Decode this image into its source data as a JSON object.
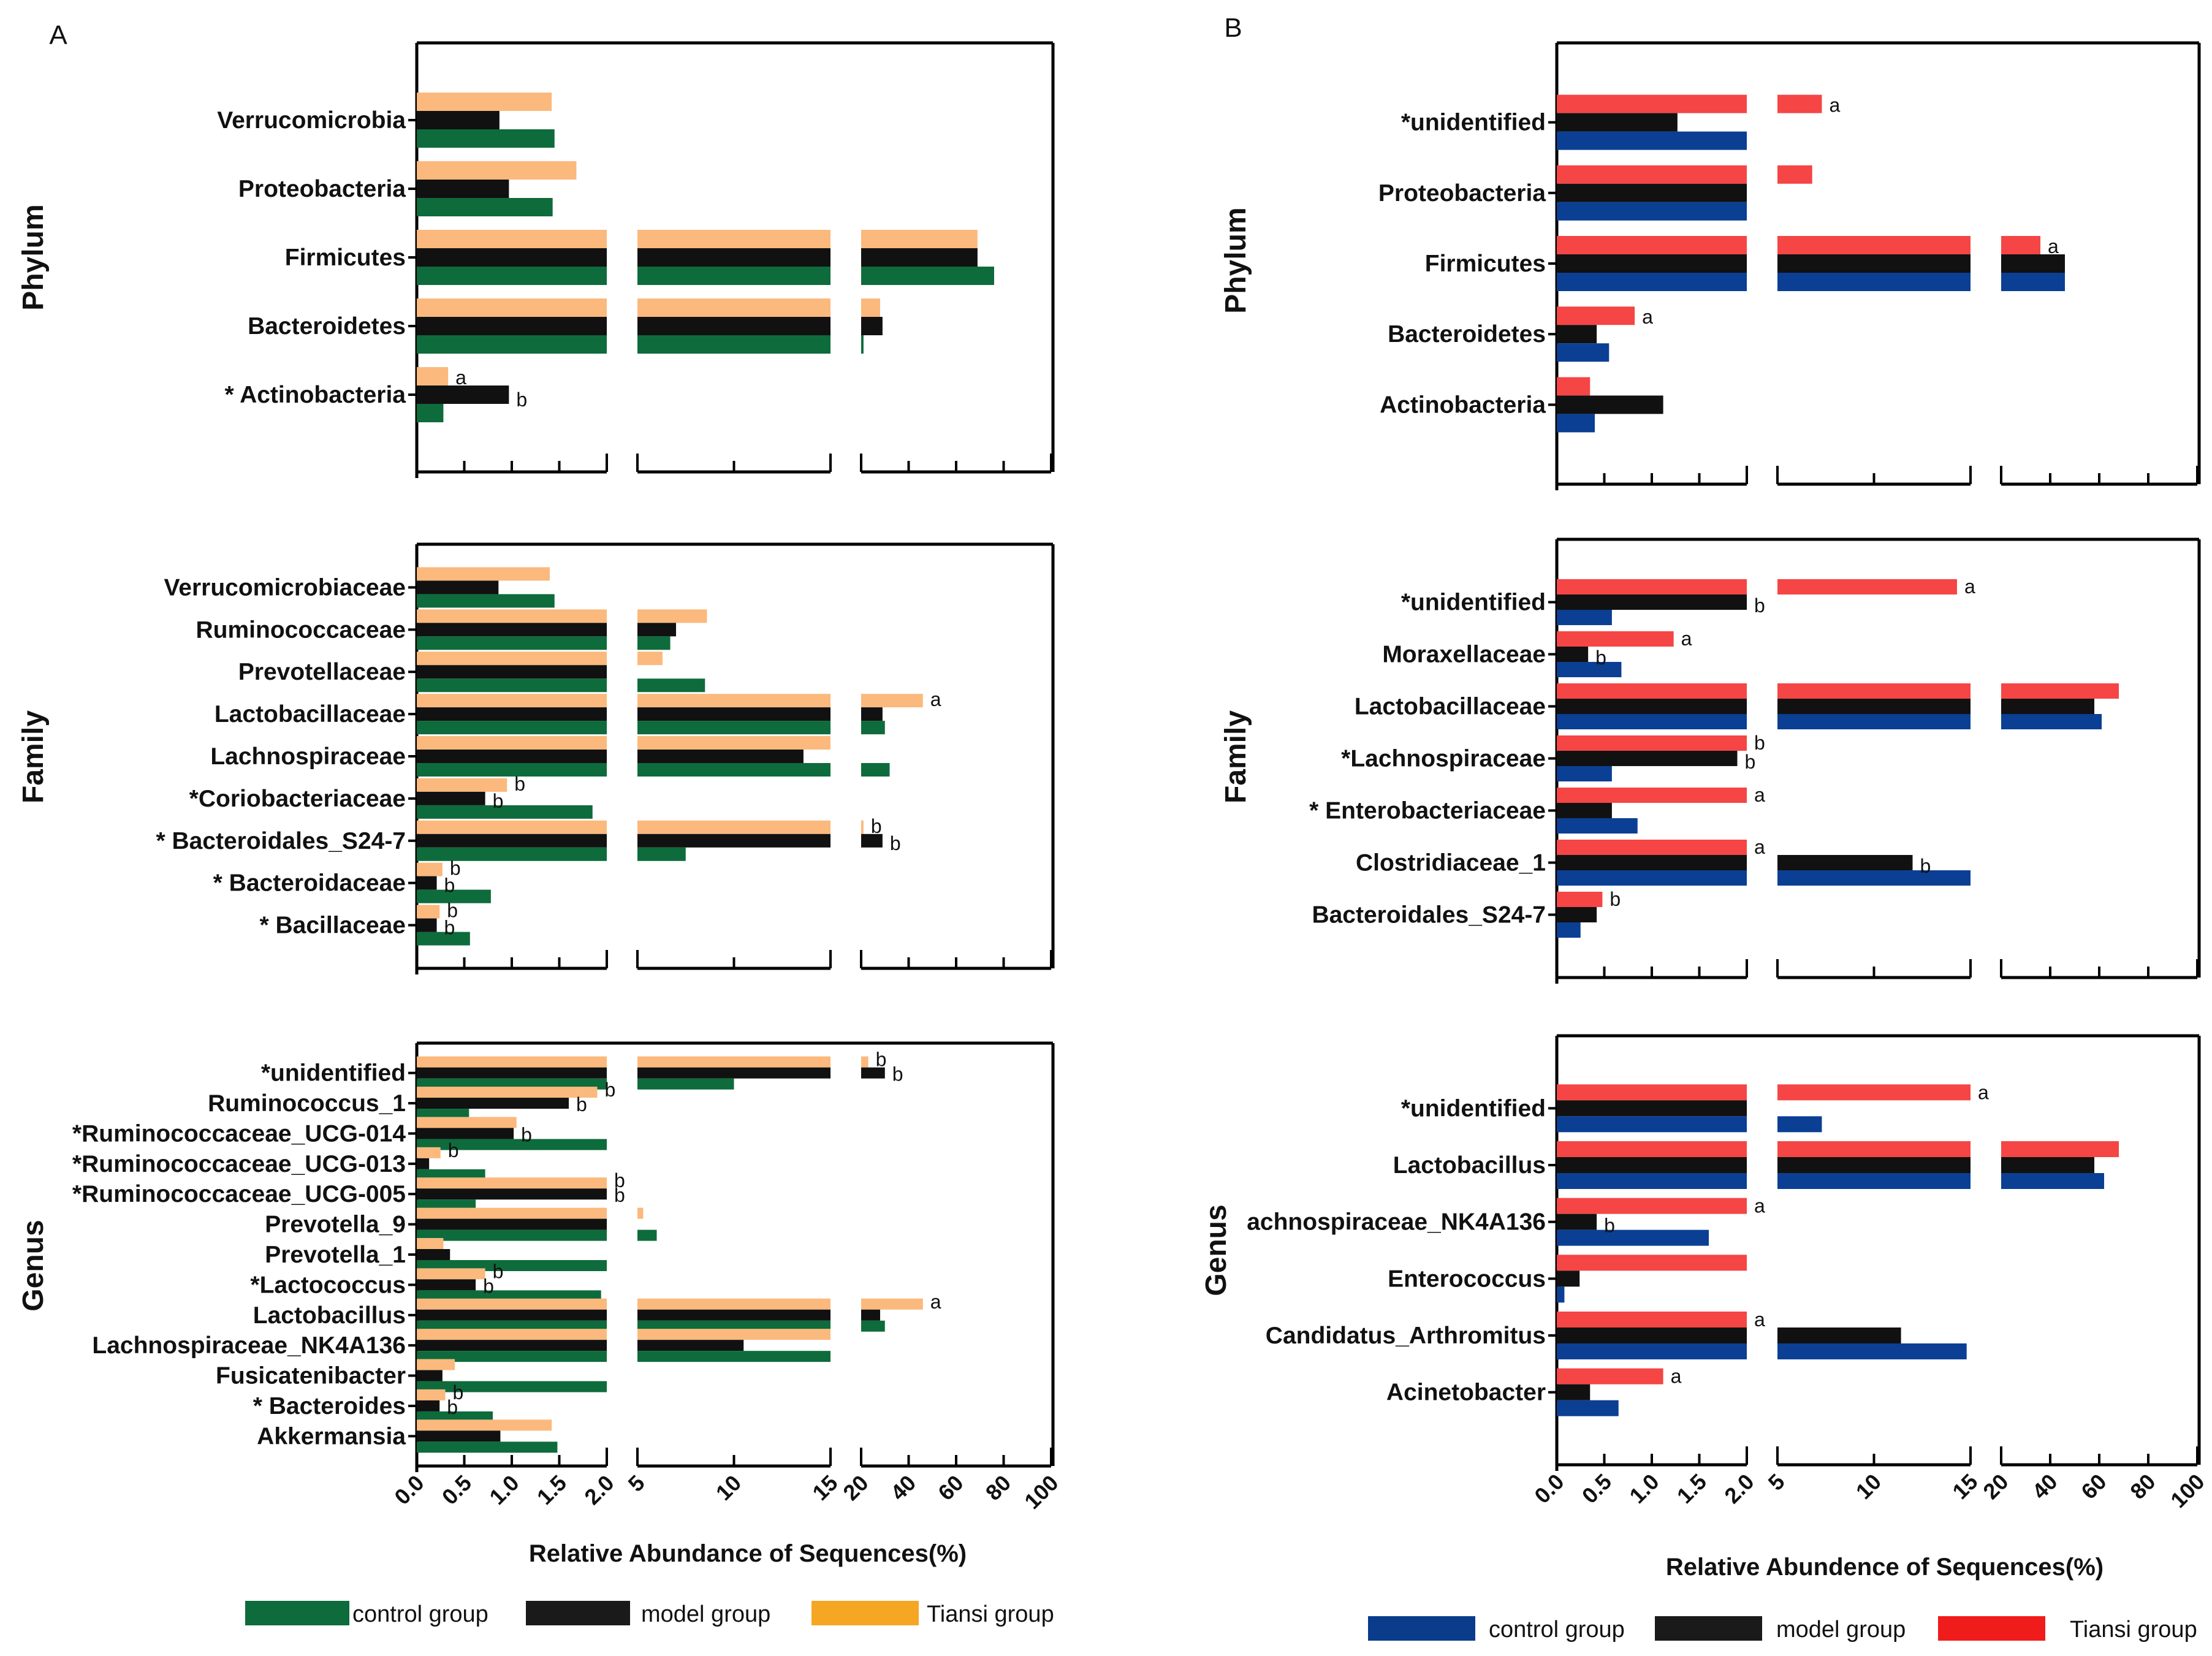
{
  "chart_data": [
    {
      "panel": "A",
      "type": "bar",
      "xlabel": "Relative Abundance of Sequences(%)",
      "axis_segments": [
        {
          "min": 0,
          "max": 2,
          "ticks": [
            "0.0",
            "0.5",
            "1.0",
            "1.5",
            "2.0"
          ]
        },
        {
          "min": 5,
          "max": 15,
          "ticks": [
            "5",
            "10",
            "15"
          ]
        },
        {
          "min": 20,
          "max": 100,
          "ticks": [
            "20",
            "40",
            "60",
            "80",
            "100"
          ]
        }
      ],
      "legend": [
        {
          "name": "control group",
          "color": "#0e6b3c"
        },
        {
          "name": "model  group",
          "color": "#1a1a1a"
        },
        {
          "name": "Tiansi group",
          "color": "#f5a623"
        }
      ],
      "series_colors": {
        "control": "#0e6b3c",
        "model": "#111111",
        "tiansi": "#fbb97d"
      },
      "subplots": [
        {
          "level": "Phylum",
          "categories": [
            {
              "name": "Verrucomicrobia",
              "control": 1.45,
              "model": 0.87,
              "tiansi": 1.42,
              "sig_model": "",
              "sig_tiansi": ""
            },
            {
              "name": "Proteobacteria",
              "control": 1.43,
              "model": 0.97,
              "tiansi": 1.68,
              "sig_model": "",
              "sig_tiansi": ""
            },
            {
              "name": "Firmicutes",
              "control": 76,
              "model": 69,
              "tiansi": 69,
              "sig_model": "",
              "sig_tiansi": ""
            },
            {
              "name": "Bacteroidetes",
              "control": 21,
              "model": 29,
              "tiansi": 28,
              "sig_model": "",
              "sig_tiansi": ""
            },
            {
              "name": "* Actinobacteria",
              "control": 0.28,
              "model": 0.97,
              "tiansi": 0.33,
              "sig_model": "b",
              "sig_tiansi": "a"
            }
          ]
        },
        {
          "level": "Family",
          "categories": [
            {
              "name": "Verrucomicrobiaceae",
              "control": 1.45,
              "model": 0.86,
              "tiansi": 1.4,
              "sig_model": "",
              "sig_tiansi": ""
            },
            {
              "name": "Ruminococcaceae",
              "control": 6.7,
              "model": 7.0,
              "tiansi": 8.6,
              "sig_model": "",
              "sig_tiansi": ""
            },
            {
              "name": "Prevotellaceae",
              "control": 8.5,
              "model": 2.0,
              "tiansi": 6.3,
              "sig_model": "",
              "sig_tiansi": ""
            },
            {
              "name": "Lactobacillaceae",
              "control": 30,
              "model": 29,
              "tiansi": 46,
              "sig_model": "",
              "sig_tiansi": "a"
            },
            {
              "name": "Lachnospiraceae",
              "control": 32,
              "model": 13.6,
              "tiansi": 15,
              "sig_model": "",
              "sig_tiansi": ""
            },
            {
              "name": "*Coriobacteriaceae",
              "control": 1.85,
              "model": 0.72,
              "tiansi": 0.95,
              "sig_model": "b",
              "sig_tiansi": "b"
            },
            {
              "name": "* Bacteroidales_S24-7",
              "control": 7.5,
              "model": 29,
              "tiansi": 21,
              "sig_model": "b",
              "sig_tiansi": "b"
            },
            {
              "name": "* Bacteroidaceae",
              "control": 0.78,
              "model": 0.21,
              "tiansi": 0.27,
              "sig_model": "b",
              "sig_tiansi": "b"
            },
            {
              "name": "* Bacillaceae",
              "control": 0.56,
              "model": 0.21,
              "tiansi": 0.24,
              "sig_model": "b",
              "sig_tiansi": "b"
            }
          ]
        },
        {
          "level": "Genus",
          "categories": [
            {
              "name": "*unidentified",
              "control": 10,
              "model": 30,
              "tiansi": 23,
              "sig_model": "b",
              "sig_tiansi": "b"
            },
            {
              "name": "Ruminococcus_1",
              "control": 0.55,
              "model": 1.6,
              "tiansi": 1.9,
              "sig_model": "b",
              "sig_tiansi": "b"
            },
            {
              "name": "*Ruminococcaceae_UCG-014",
              "control": 2.0,
              "model": 1.02,
              "tiansi": 1.05,
              "sig_model": "b",
              "sig_tiansi": ""
            },
            {
              "name": "*Ruminococcaceae_UCG-013",
              "control": 0.72,
              "model": 0.13,
              "tiansi": 0.25,
              "sig_model": "",
              "sig_tiansi": "b"
            },
            {
              "name": "*Ruminococcaceae_UCG-005",
              "control": 0.62,
              "model": 2.0,
              "tiansi": 2.0,
              "sig_model": "b",
              "sig_tiansi": "b"
            },
            {
              "name": "Prevotella_9",
              "control": 6.0,
              "model": 2.0,
              "tiansi": 5.3,
              "sig_model": "",
              "sig_tiansi": ""
            },
            {
              "name": "Prevotella_1",
              "control": 2.0,
              "model": 0.35,
              "tiansi": 0.28,
              "sig_model": "",
              "sig_tiansi": ""
            },
            {
              "name": "*Lactococcus",
              "control": 1.94,
              "model": 0.62,
              "tiansi": 0.72,
              "sig_model": "b",
              "sig_tiansi": "b"
            },
            {
              "name": "Lactobacillus",
              "control": 30,
              "model": 28,
              "tiansi": 46,
              "sig_model": "",
              "sig_tiansi": "a"
            },
            {
              "name": "Lachnospiraceae_NK4A136",
              "control": 15,
              "model": 10.5,
              "tiansi": 15,
              "sig_model": "",
              "sig_tiansi": ""
            },
            {
              "name": "Fusicatenibacter",
              "control": 2.0,
              "model": 0.27,
              "tiansi": 0.4,
              "sig_model": "",
              "sig_tiansi": ""
            },
            {
              "name": "* Bacteroides",
              "control": 0.8,
              "model": 0.24,
              "tiansi": 0.3,
              "sig_model": "b",
              "sig_tiansi": "b"
            },
            {
              "name": "Akkermansia",
              "control": 1.48,
              "model": 0.88,
              "tiansi": 1.42,
              "sig_model": "",
              "sig_tiansi": ""
            }
          ]
        }
      ]
    },
    {
      "panel": "B",
      "type": "bar",
      "xlabel": "Relative Abundence of Sequences(%)",
      "axis_segments": [
        {
          "min": 0,
          "max": 2,
          "ticks": [
            "0.0",
            "0.5",
            "1.0",
            "1.5",
            "2.0"
          ]
        },
        {
          "min": 5,
          "max": 15,
          "ticks": [
            "5",
            "10",
            "15"
          ]
        },
        {
          "min": 20,
          "max": 100,
          "ticks": [
            "20",
            "40",
            "60",
            "80",
            "100"
          ]
        }
      ],
      "legend": [
        {
          "name": "control group",
          "color": "#0b3c8c"
        },
        {
          "name": "model group",
          "color": "#1a1a1a"
        },
        {
          "name": "Tiansi group",
          "color": "#f01c1c"
        }
      ],
      "series_colors": {
        "control": "#0b3f94",
        "model": "#111111",
        "tiansi": "#f54545"
      },
      "subplots": [
        {
          "level": "Phylum",
          "categories": [
            {
              "name": "*unidentified",
              "control": 2.0,
              "model": 1.27,
              "tiansi": 7.3,
              "sig_model": "",
              "sig_tiansi": "a"
            },
            {
              "name": "Proteobacteria",
              "control": 2.0,
              "model": 2.0,
              "tiansi": 6.8,
              "sig_model": "",
              "sig_tiansi": ""
            },
            {
              "name": "Firmicutes",
              "control": 46,
              "model": 46,
              "tiansi": 36,
              "sig_model": "",
              "sig_tiansi": "a"
            },
            {
              "name": "Bacteroidetes",
              "control": 0.55,
              "model": 0.42,
              "tiansi": 0.82,
              "sig_model": "",
              "sig_tiansi": "a"
            },
            {
              "name": "Actinobacteria",
              "control": 0.4,
              "model": 1.12,
              "tiansi": 0.35,
              "sig_model": "",
              "sig_tiansi": ""
            }
          ]
        },
        {
          "level": "Family",
          "categories": [
            {
              "name": "*unidentified",
              "control": 0.58,
              "model": 2.0,
              "tiansi": 14.3,
              "sig_model": "b",
              "sig_tiansi": "a"
            },
            {
              "name": "Moraxellaceae",
              "control": 0.68,
              "model": 0.33,
              "tiansi": 1.23,
              "sig_model": "b",
              "sig_tiansi": "a"
            },
            {
              "name": "Lactobacillaceae",
              "control": 61,
              "model": 58,
              "tiansi": 68,
              "sig_model": "",
              "sig_tiansi": ""
            },
            {
              "name": "*Lachnospiraceae",
              "control": 0.58,
              "model": 1.9,
              "tiansi": 2.0,
              "sig_model": "b",
              "sig_tiansi": "b"
            },
            {
              "name": "* Enterobacteriaceae",
              "control": 0.85,
              "model": 0.58,
              "tiansi": 2.0,
              "sig_model": "",
              "sig_tiansi": "a"
            },
            {
              "name": "Clostridiaceae_1",
              "control": 15,
              "model": 12,
              "tiansi": 2.0,
              "sig_model": "b",
              "sig_tiansi": "a"
            },
            {
              "name": "Bacteroidales_S24-7",
              "control": 0.25,
              "model": 0.42,
              "tiansi": 0.48,
              "sig_model": "",
              "sig_tiansi": "b"
            }
          ]
        },
        {
          "level": "Genus",
          "categories": [
            {
              "name": "*unidentified",
              "control": 7.3,
              "model": 2.0,
              "tiansi": 15,
              "sig_model": "",
              "sig_tiansi": "a"
            },
            {
              "name": "Lactobacillus",
              "control": 62,
              "model": 58,
              "tiansi": 68,
              "sig_model": "",
              "sig_tiansi": ""
            },
            {
              "name": "achnospiraceae_NK4A136",
              "control": 1.6,
              "model": 0.42,
              "tiansi": 2.0,
              "sig_model": "b",
              "sig_tiansi": "a"
            },
            {
              "name": "Enterococcus",
              "control": 0.08,
              "model": 0.24,
              "tiansi": 2.0,
              "sig_model": "",
              "sig_tiansi": ""
            },
            {
              "name": "Candidatus_Arthromitus",
              "control": 14.8,
              "model": 11.4,
              "tiansi": 2.0,
              "sig_model": "",
              "sig_tiansi": "a"
            },
            {
              "name": "Acinetobacter",
              "control": 0.65,
              "model": 0.35,
              "tiansi": 1.12,
              "sig_model": "",
              "sig_tiansi": "a"
            }
          ]
        }
      ]
    }
  ]
}
